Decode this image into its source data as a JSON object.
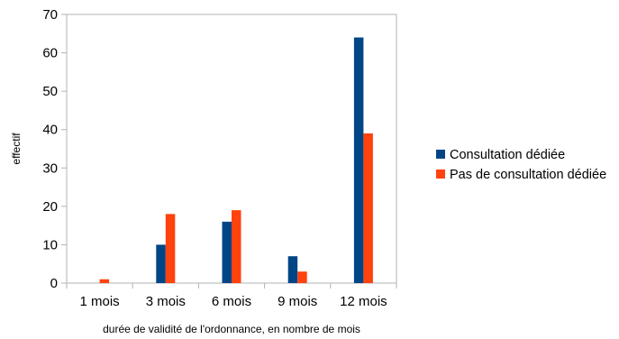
{
  "chart_data": {
    "type": "bar",
    "categories": [
      "1 mois",
      "3 mois",
      "6 mois",
      "9 mois",
      "12 mois"
    ],
    "series": [
      {
        "name": "Consultation dédiée",
        "color": "#004586",
        "values": [
          0,
          10,
          16,
          7,
          64
        ]
      },
      {
        "name": "Pas de consultation dédiée",
        "color": "#ff420e",
        "values": [
          1,
          18,
          19,
          3,
          39
        ]
      }
    ],
    "xlabel": "durée de validité de l'ordonnance, en nombre de mois",
    "ylabel": "effectif",
    "ylim": [
      0,
      70
    ],
    "yticks": [
      0,
      10,
      20,
      30,
      40,
      50,
      60,
      70
    ],
    "grid": false,
    "legend_position": "right"
  }
}
